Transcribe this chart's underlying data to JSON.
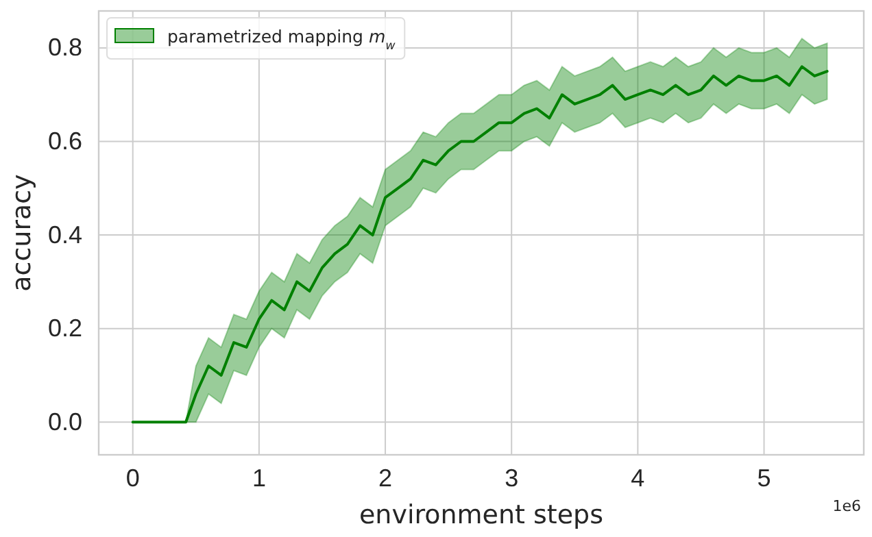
{
  "chart_data": {
    "type": "line",
    "xlabel": "environment steps",
    "ylabel": "accuracy",
    "annotations": [
      "1e6"
    ],
    "x": [
      0,
      0.42,
      0.5,
      0.6,
      0.7,
      0.8,
      0.9,
      1.0,
      1.1,
      1.2,
      1.3,
      1.4,
      1.5,
      1.6,
      1.7,
      1.8,
      1.9,
      2.0,
      2.1,
      2.2,
      2.3,
      2.4,
      2.5,
      2.6,
      2.7,
      2.8,
      2.9,
      3.0,
      3.1,
      3.2,
      3.3,
      3.4,
      3.5,
      3.6,
      3.7,
      3.8,
      3.9,
      4.0,
      4.1,
      4.2,
      4.3,
      4.4,
      4.5,
      4.6,
      4.7,
      4.8,
      4.9,
      5.0,
      5.1,
      5.2,
      5.3,
      5.4,
      5.5
    ],
    "series": [
      {
        "name": "parametrized mapping m$_{w}$",
        "color": "#008000",
        "values": [
          0,
          0,
          0.06,
          0.12,
          0.1,
          0.17,
          0.16,
          0.22,
          0.26,
          0.24,
          0.3,
          0.28,
          0.33,
          0.36,
          0.38,
          0.42,
          0.4,
          0.48,
          0.5,
          0.52,
          0.56,
          0.55,
          0.58,
          0.6,
          0.6,
          0.62,
          0.64,
          0.64,
          0.66,
          0.67,
          0.65,
          0.7,
          0.68,
          0.69,
          0.7,
          0.72,
          0.69,
          0.7,
          0.71,
          0.7,
          0.72,
          0.7,
          0.71,
          0.74,
          0.72,
          0.74,
          0.73,
          0.73,
          0.74,
          0.72,
          0.76,
          0.74,
          0.75
        ],
        "upper": [
          0,
          0,
          0.12,
          0.18,
          0.16,
          0.23,
          0.22,
          0.28,
          0.32,
          0.3,
          0.36,
          0.34,
          0.39,
          0.42,
          0.44,
          0.48,
          0.46,
          0.54,
          0.56,
          0.58,
          0.62,
          0.61,
          0.64,
          0.66,
          0.66,
          0.68,
          0.7,
          0.7,
          0.72,
          0.73,
          0.71,
          0.76,
          0.74,
          0.75,
          0.76,
          0.78,
          0.75,
          0.76,
          0.77,
          0.76,
          0.78,
          0.76,
          0.77,
          0.8,
          0.78,
          0.8,
          0.79,
          0.79,
          0.8,
          0.78,
          0.82,
          0.8,
          0.81
        ],
        "lower": [
          0,
          0,
          0,
          0.06,
          0.04,
          0.11,
          0.1,
          0.16,
          0.2,
          0.18,
          0.24,
          0.22,
          0.27,
          0.3,
          0.32,
          0.36,
          0.34,
          0.42,
          0.44,
          0.46,
          0.5,
          0.49,
          0.52,
          0.54,
          0.54,
          0.56,
          0.58,
          0.58,
          0.6,
          0.61,
          0.59,
          0.64,
          0.62,
          0.63,
          0.64,
          0.66,
          0.63,
          0.64,
          0.65,
          0.64,
          0.66,
          0.64,
          0.65,
          0.68,
          0.66,
          0.68,
          0.67,
          0.67,
          0.68,
          0.66,
          0.7,
          0.68,
          0.69
        ]
      }
    ],
    "xlim": [
      -0.27,
      5.79
    ],
    "xticks": [
      0,
      1,
      2,
      3,
      4,
      5
    ],
    "ylim": [
      -0.07,
      0.879
    ],
    "yticks": [
      {
        "value": 0,
        "label": "0.0"
      },
      {
        "value": 0.2,
        "label": "0.2"
      },
      {
        "value": 0.4,
        "label": "0.4"
      },
      {
        "value": 0.6,
        "label": "0.6"
      },
      {
        "value": 0.8,
        "label": "0.8"
      }
    ],
    "grid": true,
    "legend": "top left",
    "line_style": "solid",
    "marker": "none"
  }
}
